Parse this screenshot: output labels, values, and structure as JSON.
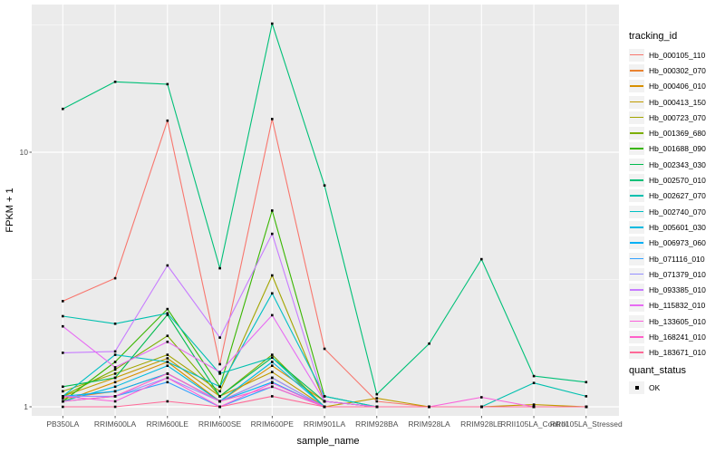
{
  "chart_data": {
    "type": "line",
    "title": "",
    "xlabel": "sample_name",
    "ylabel": "FPKM + 1",
    "y_scale": "log10",
    "y_ticks": [
      1,
      10
    ],
    "y_tick_labels": [
      "1",
      "10"
    ],
    "y_minor_gridlines": [
      3.1623,
      31.623
    ],
    "ylim": [
      0.96,
      38
    ],
    "grid": "on",
    "legend_position": "right",
    "point_marker": {
      "shape": "square",
      "color": "#000000",
      "size": 2.6
    },
    "categories": [
      "PB350LA",
      "RRIM600LA",
      "RRIM600LE",
      "RRIM600SE",
      "RRIM600PE",
      "RRIM901LA",
      "RRIM928BA",
      "RRIM928LA",
      "RRIM928LE",
      "RRII105LA_Control",
      "RRII105LA_Stressed"
    ],
    "series": [
      {
        "name": "Hb_000105_110",
        "color": "#F8766D",
        "values": [
          2.6,
          3.2,
          13.3,
          1.47,
          13.5,
          1.69,
          1.05,
          1.0,
          1.0,
          1.0,
          1.0
        ]
      },
      {
        "name": "Hb_000302_070",
        "color": "#EA8331",
        "values": [
          1.08,
          1.15,
          1.35,
          1.05,
          1.3,
          1.0,
          1.0,
          1.0,
          1.0,
          1.0,
          1.0
        ]
      },
      {
        "name": "Hb_000406_010",
        "color": "#D89000",
        "values": [
          1.05,
          1.25,
          1.5,
          1.05,
          1.45,
          1.05,
          1.0,
          1.0,
          1.0,
          1.0,
          1.0
        ]
      },
      {
        "name": "Hb_000413_150",
        "color": "#C09B00",
        "values": [
          1.1,
          1.3,
          1.55,
          1.1,
          1.37,
          1.0,
          1.08,
          1.0,
          1.0,
          1.02,
          1.0
        ]
      },
      {
        "name": "Hb_000723_070",
        "color": "#A3A500",
        "values": [
          1.15,
          1.35,
          1.6,
          1.15,
          3.28,
          1.05,
          1.0,
          1.0,
          1.0,
          1.0,
          1.0
        ]
      },
      {
        "name": "Hb_001369_680",
        "color": "#7CAE00",
        "values": [
          1.1,
          1.4,
          1.9,
          1.1,
          1.6,
          1.0,
          1.0,
          1.0,
          1.0,
          1.0,
          1.0
        ]
      },
      {
        "name": "Hb_001688_090",
        "color": "#39B600",
        "values": [
          1.05,
          1.5,
          2.42,
          1.2,
          5.9,
          1.1,
          1.0,
          1.0,
          1.0,
          1.0,
          1.0
        ]
      },
      {
        "name": "Hb_002343_030",
        "color": "#00BB4E",
        "values": [
          1.2,
          1.3,
          2.3,
          1.1,
          1.56,
          1.05,
          1.0,
          1.0,
          1.0,
          1.0,
          1.0
        ]
      },
      {
        "name": "Hb_002570_010",
        "color": "#00C078",
        "values": [
          14.8,
          18.9,
          18.5,
          3.5,
          32.0,
          7.4,
          1.12,
          1.77,
          3.8,
          1.32,
          1.25
        ]
      },
      {
        "name": "Hb_002627_070",
        "color": "#00C0AF",
        "values": [
          2.27,
          2.12,
          2.33,
          1.35,
          1.56,
          1.0,
          1.0,
          1.0,
          1.0,
          1.24,
          1.1
        ]
      },
      {
        "name": "Hb_002740_070",
        "color": "#00BFC4",
        "values": [
          1.1,
          1.6,
          1.5,
          1.2,
          2.79,
          1.1,
          1.0,
          1.0,
          1.0,
          1.0,
          1.0
        ]
      },
      {
        "name": "Hb_005601_030",
        "color": "#00BAE0",
        "values": [
          1.05,
          1.2,
          1.45,
          1.05,
          1.5,
          1.0,
          1.0,
          1.0,
          1.0,
          1.0,
          1.0
        ]
      },
      {
        "name": "Hb_006973_060",
        "color": "#00B0F6",
        "values": [
          1.1,
          1.15,
          1.35,
          1.05,
          1.25,
          1.0,
          1.0,
          1.0,
          1.0,
          1.0,
          1.0
        ]
      },
      {
        "name": "Hb_071116_010",
        "color": "#35A2FF",
        "values": [
          1.05,
          1.1,
          1.25,
          1.0,
          1.2,
          1.0,
          1.0,
          1.0,
          1.0,
          1.0,
          1.0
        ]
      },
      {
        "name": "Hb_071379_010",
        "color": "#9590FF",
        "values": [
          1.1,
          1.1,
          1.3,
          1.05,
          1.3,
          1.0,
          1.0,
          1.0,
          1.0,
          1.0,
          1.0
        ]
      },
      {
        "name": "Hb_093385_010",
        "color": "#C77CFF",
        "values": [
          1.63,
          1.65,
          3.59,
          1.87,
          4.78,
          1.05,
          1.0,
          1.0,
          1.0,
          1.0,
          1.0
        ]
      },
      {
        "name": "Hb_115832_010",
        "color": "#E76BF3",
        "values": [
          2.07,
          1.43,
          1.8,
          1.37,
          2.29,
          1.05,
          1.0,
          1.0,
          1.0,
          1.0,
          1.0
        ]
      },
      {
        "name": "Hb_133605_010",
        "color": "#FA62DB",
        "values": [
          1.1,
          1.05,
          1.3,
          1.0,
          1.24,
          1.0,
          1.0,
          1.0,
          1.09,
          1.0,
          1.0
        ]
      },
      {
        "name": "Hb_168241_010",
        "color": "#FF61C9",
        "values": [
          1.05,
          1.1,
          1.35,
          1.05,
          1.2,
          1.0,
          1.0,
          1.0,
          1.0,
          1.0,
          1.0
        ]
      },
      {
        "name": "Hb_183671_010",
        "color": "#FF6A98",
        "values": [
          1.0,
          1.0,
          1.05,
          1.0,
          1.1,
          1.0,
          1.0,
          1.0,
          1.0,
          1.0,
          1.0
        ]
      }
    ]
  },
  "legend": {
    "tracking_title": "tracking_id",
    "quant_title": "quant_status",
    "quant_items": [
      {
        "label": "OK"
      }
    ]
  },
  "panel": {
    "bg": "#EBEBEB",
    "grid_color": "#FFFFFF",
    "tick_label_color": "#4D4D4D",
    "tick_mark_color": "#333333"
  }
}
